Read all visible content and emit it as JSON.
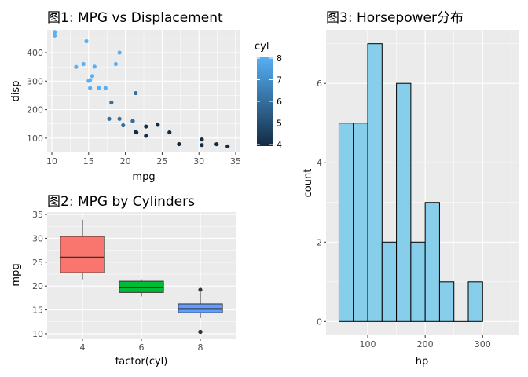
{
  "chart_data": [
    {
      "id": "scatter",
      "type": "scatter",
      "title": "图1: MPG vs Displacement",
      "xlabel": "mpg",
      "ylabel": "disp",
      "xlim": [
        10,
        35
      ],
      "ylim": [
        50,
        480
      ],
      "xticks": [
        10,
        15,
        20,
        25,
        30,
        35
      ],
      "yticks": [
        100,
        200,
        300,
        400
      ],
      "legend": {
        "title": "cyl",
        "labels": [
          "8",
          "7",
          "6",
          "5",
          "4"
        ],
        "range": [
          4,
          8
        ],
        "low_color": "#132B43",
        "high_color": "#56B1F7"
      },
      "points": [
        {
          "x": 21.0,
          "y": 160,
          "c": 6
        },
        {
          "x": 21.0,
          "y": 160,
          "c": 6
        },
        {
          "x": 22.8,
          "y": 108,
          "c": 4
        },
        {
          "x": 21.4,
          "y": 258,
          "c": 6
        },
        {
          "x": 18.7,
          "y": 360,
          "c": 8
        },
        {
          "x": 18.1,
          "y": 225,
          "c": 6
        },
        {
          "x": 14.3,
          "y": 360,
          "c": 8
        },
        {
          "x": 24.4,
          "y": 146.7,
          "c": 4
        },
        {
          "x": 22.8,
          "y": 140.8,
          "c": 4
        },
        {
          "x": 19.2,
          "y": 167.6,
          "c": 6
        },
        {
          "x": 17.8,
          "y": 167.6,
          "c": 6
        },
        {
          "x": 16.4,
          "y": 275.8,
          "c": 8
        },
        {
          "x": 17.3,
          "y": 275.8,
          "c": 8
        },
        {
          "x": 15.2,
          "y": 275.8,
          "c": 8
        },
        {
          "x": 10.4,
          "y": 472,
          "c": 8
        },
        {
          "x": 10.4,
          "y": 460,
          "c": 8
        },
        {
          "x": 14.7,
          "y": 440,
          "c": 8
        },
        {
          "x": 32.4,
          "y": 78.7,
          "c": 4
        },
        {
          "x": 30.4,
          "y": 75.7,
          "c": 4
        },
        {
          "x": 33.9,
          "y": 71.1,
          "c": 4
        },
        {
          "x": 21.5,
          "y": 120.1,
          "c": 4
        },
        {
          "x": 15.5,
          "y": 318,
          "c": 8
        },
        {
          "x": 15.2,
          "y": 304,
          "c": 8
        },
        {
          "x": 13.3,
          "y": 350,
          "c": 8
        },
        {
          "x": 19.2,
          "y": 400,
          "c": 8
        },
        {
          "x": 27.3,
          "y": 79,
          "c": 4
        },
        {
          "x": 26.0,
          "y": 120.3,
          "c": 4
        },
        {
          "x": 30.4,
          "y": 95.1,
          "c": 4
        },
        {
          "x": 15.8,
          "y": 351,
          "c": 8
        },
        {
          "x": 19.7,
          "y": 145,
          "c": 6
        },
        {
          "x": 15.0,
          "y": 301,
          "c": 8
        },
        {
          "x": 21.4,
          "y": 121,
          "c": 4
        }
      ]
    },
    {
      "id": "boxplot",
      "type": "box",
      "title": "图2: MPG by Cylinders",
      "xlabel": "factor(cyl)",
      "ylabel": "mpg",
      "ylim": [
        9,
        35.5
      ],
      "yticks": [
        10,
        15,
        20,
        25,
        30,
        35
      ],
      "categories": [
        "4",
        "6",
        "8"
      ],
      "boxes": [
        {
          "category": "4",
          "min": 21.4,
          "q1": 22.8,
          "median": 26.0,
          "q3": 30.4,
          "max": 33.9,
          "outliers": [],
          "color": "#F8766D"
        },
        {
          "category": "6",
          "min": 17.8,
          "q1": 18.65,
          "median": 19.7,
          "q3": 21.0,
          "max": 21.4,
          "outliers": [],
          "color": "#00BA38"
        },
        {
          "category": "8",
          "min": 13.3,
          "q1": 14.4,
          "median": 15.2,
          "q3": 16.25,
          "max": 18.7,
          "outliers": [
            10.4,
            10.4,
            19.2
          ],
          "color": "#619CFF"
        }
      ]
    },
    {
      "id": "histogram",
      "type": "bar",
      "title": "图3: Horsepower分布",
      "xlabel": "hp",
      "ylabel": "count",
      "xlim": [
        27.5,
        362.5
      ],
      "ylim": [
        -0.35,
        7.35
      ],
      "xticks": [
        100,
        200,
        300
      ],
      "yticks": [
        0,
        2,
        4,
        6
      ],
      "binwidth": 25,
      "fill": "#87CEEB",
      "bins": [
        {
          "left": 50,
          "count": 5
        },
        {
          "left": 75,
          "count": 5
        },
        {
          "left": 100,
          "count": 7
        },
        {
          "left": 125,
          "count": 2
        },
        {
          "left": 150,
          "count": 6
        },
        {
          "left": 175,
          "count": 2
        },
        {
          "left": 200,
          "count": 3
        },
        {
          "left": 225,
          "count": 1
        },
        {
          "left": 250,
          "count": 0
        },
        {
          "left": 275,
          "count": 1
        }
      ]
    }
  ]
}
